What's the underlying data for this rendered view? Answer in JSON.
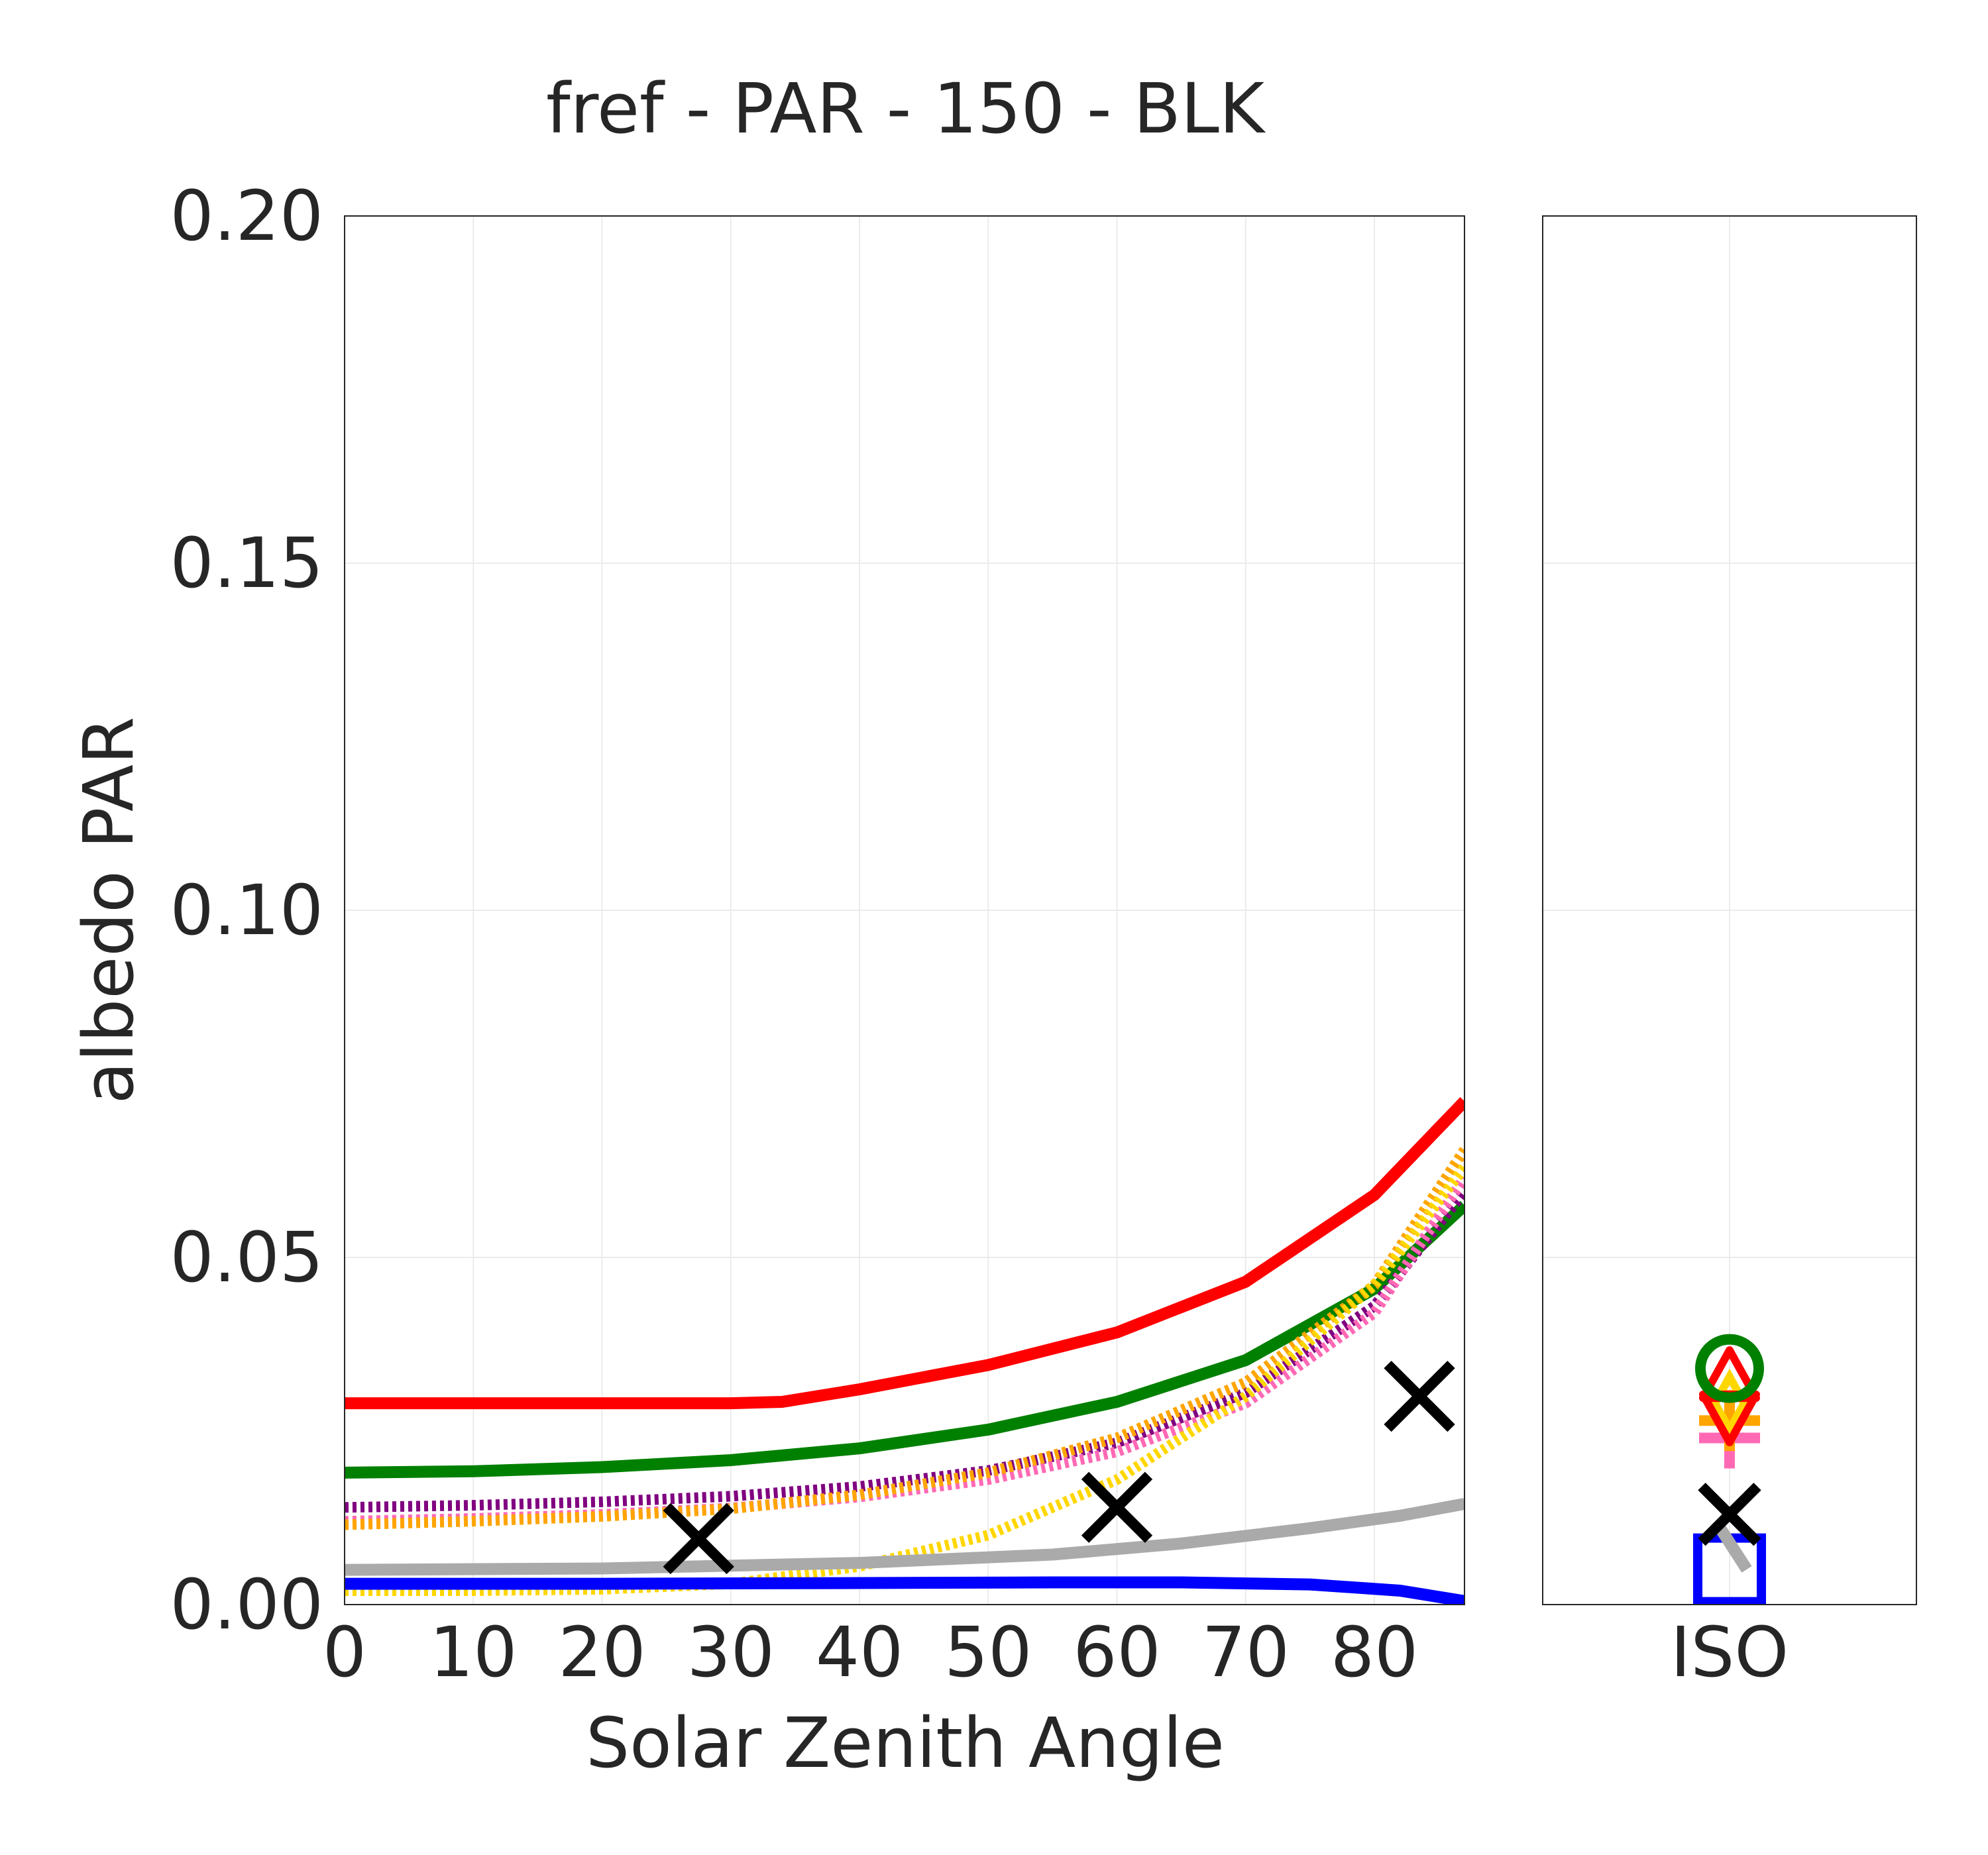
{
  "chart_data": {
    "type": "line",
    "title": "fref - PAR - 150 - BLK",
    "xlabel": "Solar Zenith Angle",
    "ylabel": "albedo PAR",
    "xlim": [
      0,
      87
    ],
    "ylim": [
      0,
      0.2
    ],
    "xticks": [
      "0",
      "10",
      "20",
      "30",
      "40",
      "50",
      "60",
      "70",
      "80"
    ],
    "yticks": [
      "0.00",
      "0.05",
      "0.10",
      "0.15",
      "0.20"
    ],
    "grid": true,
    "series": [
      {
        "color": "#ff0000",
        "style": "solid",
        "points": [
          [
            0,
            0.029
          ],
          [
            30,
            0.029
          ],
          [
            34,
            0.0292
          ],
          [
            40,
            0.031
          ],
          [
            50,
            0.0345
          ],
          [
            60,
            0.0392
          ],
          [
            70,
            0.0465
          ],
          [
            80,
            0.059
          ],
          [
            87,
            0.0725
          ]
        ]
      },
      {
        "color": "#008000",
        "style": "solid",
        "points": [
          [
            0,
            0.019
          ],
          [
            10,
            0.0192
          ],
          [
            20,
            0.0198
          ],
          [
            30,
            0.0208
          ],
          [
            40,
            0.0225
          ],
          [
            50,
            0.0252
          ],
          [
            60,
            0.0292
          ],
          [
            70,
            0.0352
          ],
          [
            80,
            0.0455
          ],
          [
            87,
            0.0575
          ]
        ]
      },
      {
        "color": "#800080",
        "style": "dotted",
        "points": [
          [
            0,
            0.014
          ],
          [
            10,
            0.0143
          ],
          [
            20,
            0.0148
          ],
          [
            30,
            0.0156
          ],
          [
            40,
            0.017
          ],
          [
            50,
            0.0193
          ],
          [
            60,
            0.0233
          ],
          [
            70,
            0.0305
          ],
          [
            80,
            0.043
          ],
          [
            87,
            0.0595
          ]
        ]
      },
      {
        "color": "#ff69b4",
        "style": "dotted",
        "points": [
          [
            0,
            0.012
          ],
          [
            10,
            0.0124
          ],
          [
            20,
            0.013
          ],
          [
            30,
            0.0139
          ],
          [
            40,
            0.0155
          ],
          [
            50,
            0.018
          ],
          [
            60,
            0.022
          ],
          [
            70,
            0.029
          ],
          [
            80,
            0.042
          ],
          [
            87,
            0.0615
          ]
        ]
      },
      {
        "color": "#ffa500",
        "style": "dotted",
        "points": [
          [
            0,
            0.0115
          ],
          [
            10,
            0.012
          ],
          [
            20,
            0.0127
          ],
          [
            30,
            0.0138
          ],
          [
            40,
            0.0158
          ],
          [
            50,
            0.019
          ],
          [
            60,
            0.024
          ],
          [
            70,
            0.032
          ],
          [
            80,
            0.046
          ],
          [
            87,
            0.0655
          ]
        ]
      },
      {
        "color": "#ffd700",
        "style": "dotted",
        "points": [
          [
            0,
            0.002
          ],
          [
            10,
            0.002
          ],
          [
            20,
            0.0022
          ],
          [
            30,
            0.003
          ],
          [
            40,
            0.0055
          ],
          [
            50,
            0.01
          ],
          [
            60,
            0.018
          ],
          [
            70,
            0.03
          ],
          [
            80,
            0.046
          ],
          [
            87,
            0.063
          ]
        ]
      },
      {
        "color": "#0000ff",
        "style": "solid",
        "points": [
          [
            0,
            0.003
          ],
          [
            20,
            0.003
          ],
          [
            40,
            0.0031
          ],
          [
            55,
            0.0032
          ],
          [
            65,
            0.0032
          ],
          [
            75,
            0.0029
          ],
          [
            82,
            0.002
          ],
          [
            87,
            0.0005
          ]
        ]
      },
      {
        "color": "#aaaaaa",
        "style": "solid",
        "points": [
          [
            0,
            0.005
          ],
          [
            20,
            0.0052
          ],
          [
            40,
            0.006
          ],
          [
            55,
            0.0072
          ],
          [
            65,
            0.0088
          ],
          [
            75,
            0.011
          ],
          [
            82,
            0.0128
          ],
          [
            87,
            0.0145
          ]
        ]
      }
    ],
    "markers": [
      {
        "x": 27.5,
        "y": 0.0095,
        "marker": "x",
        "color": "#000000"
      },
      {
        "x": 60,
        "y": 0.014,
        "marker": "x",
        "color": "#000000"
      },
      {
        "x": 83.5,
        "y": 0.03,
        "marker": "x",
        "color": "#000000"
      }
    ],
    "iso_panel": {
      "xtick": "ISO",
      "markers": [
        {
          "y": 0.005,
          "marker": "square",
          "color": "#0000ff"
        },
        {
          "y": 0.0085,
          "marker": "bar",
          "color": "#aaaaaa"
        },
        {
          "y": 0.013,
          "marker": "x",
          "color": "#000000"
        },
        {
          "y": 0.024,
          "marker": "plus",
          "color": "#ff69b4"
        },
        {
          "y": 0.0265,
          "marker": "plus",
          "color": "#ffa500"
        },
        {
          "y": 0.029,
          "marker": "diamond",
          "color": "#ffd700"
        },
        {
          "y": 0.027,
          "marker": "triangle_down",
          "color": "#ff0000"
        },
        {
          "y": 0.033,
          "marker": "triangle_up",
          "color": "#ff0000"
        },
        {
          "y": 0.034,
          "marker": "circle",
          "color": "#008000"
        }
      ]
    }
  }
}
